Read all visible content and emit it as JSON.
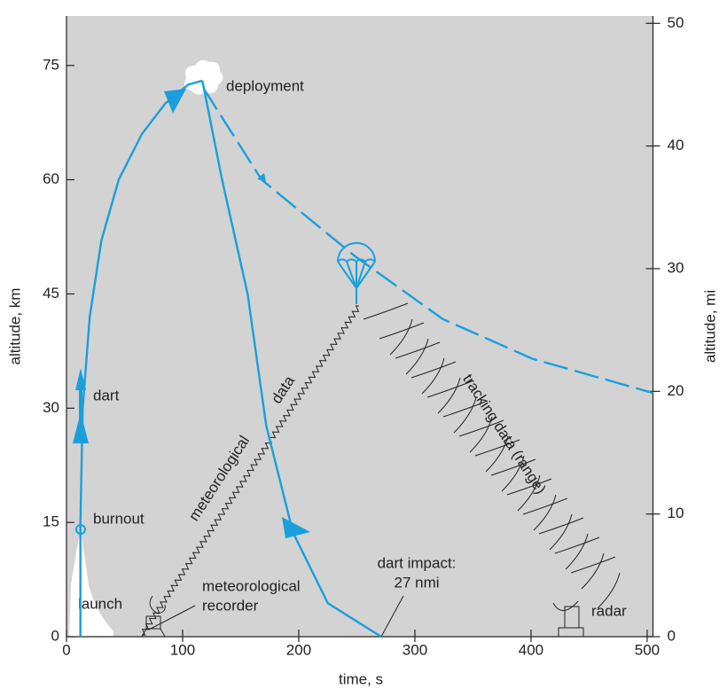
{
  "chart_data": {
    "type": "line",
    "x_label": "time, s",
    "y_label": "altitude, km",
    "y2_label": "altitude, mi",
    "xlim": [
      0,
      505
    ],
    "xticks": [
      0,
      100,
      200,
      300,
      400,
      500
    ],
    "ylim": [
      0,
      81.5
    ],
    "yticks": [
      0,
      15,
      30,
      45,
      60,
      75
    ],
    "y2lim": [
      0,
      50.6
    ],
    "y2ticks": [
      0,
      10,
      20,
      30,
      40,
      50
    ],
    "series": [
      {
        "color": "#1a9fdc",
        "dashed": false,
        "x": [
          12,
          12,
          14,
          20,
          30,
          45,
          65,
          85,
          105,
          117
        ],
        "values": [
          0,
          15,
          30,
          42,
          52,
          60,
          66,
          70,
          72.5,
          73
        ]
      },
      {
        "color": "#1a9fdc",
        "dashed": false,
        "x": [
          117,
          134,
          156,
          172,
          195,
          225,
          271
        ],
        "values": [
          73,
          60,
          45,
          27.7,
          13.7,
          4.4,
          0
        ]
      },
      {
        "color": "#1a9fdc",
        "dashed": true,
        "x": [
          118,
          168,
          248,
          324,
          401,
          505
        ],
        "values": [
          72,
          60,
          50,
          41.7,
          36.5,
          32
        ]
      }
    ],
    "annotations": {
      "deployment": "deployment",
      "dart": "dart",
      "burnout": "burnout",
      "launch": "launch",
      "recorder_1": "meteorological",
      "recorder_2": "recorder",
      "impact_1": "dart impact:",
      "impact_2": "27 nmi",
      "radar": "radar",
      "met_data_1": "meteorological",
      "met_data_2": "data",
      "tracking": "tracking data (range)"
    }
  }
}
